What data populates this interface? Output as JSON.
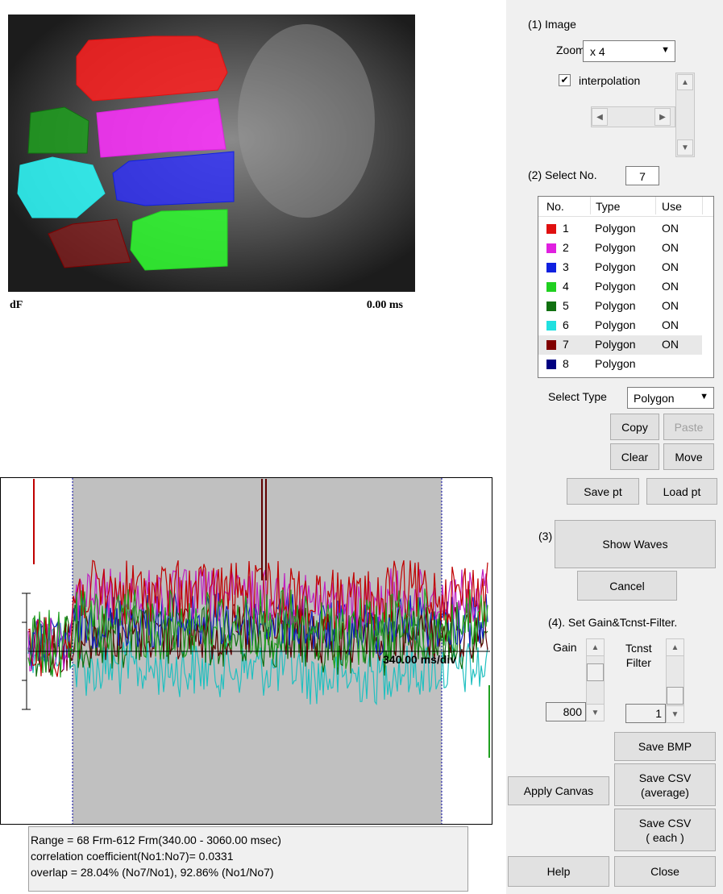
{
  "image": {
    "left_label": "dF",
    "time_label": "0.00 ms"
  },
  "waves": {
    "scale_label": "340.00 ms/div"
  },
  "info": {
    "lines": [
      "Range = 68 Frm-612 Frm(340.00 - 3060.00 msec)",
      "correlation coefficient(No1:No7)= 0.0331",
      "overlap = 28.04% (No7/No1), 92.86% (No1/No7)"
    ]
  },
  "panel": {
    "image_section": {
      "title": "(1) Image",
      "zoom_label": "Zoom",
      "zoom_value": "x 4",
      "interpolation": "interpolation"
    },
    "select_section": {
      "title": "(2) Select No.",
      "selected": "7",
      "columns": [
        "No.",
        "Type",
        "Use"
      ],
      "rows": [
        {
          "no": "1",
          "type": "Polygon",
          "use": "ON",
          "color": "#e01010"
        },
        {
          "no": "2",
          "type": "Polygon",
          "use": "ON",
          "color": "#e020e0"
        },
        {
          "no": "3",
          "type": "Polygon",
          "use": "ON",
          "color": "#1020e0"
        },
        {
          "no": "4",
          "type": "Polygon",
          "use": "ON",
          "color": "#20d020"
        },
        {
          "no": "5",
          "type": "Polygon",
          "use": "ON",
          "color": "#107010"
        },
        {
          "no": "6",
          "type": "Polygon",
          "use": "ON",
          "color": "#20e0e0"
        },
        {
          "no": "7",
          "type": "Polygon",
          "use": "ON",
          "color": "#800000"
        },
        {
          "no": "8",
          "type": "Polygon",
          "color": "#000080"
        }
      ],
      "select_type_label": "Select Type",
      "select_type_value": "Polygon",
      "buttons": {
        "copy": "Copy",
        "paste": "Paste",
        "clear": "Clear",
        "move": "Move",
        "save_pt": "Save pt",
        "load_pt": "Load pt"
      }
    },
    "waves_section": {
      "title": "(3)",
      "show": "Show Waves",
      "cancel": "Cancel"
    },
    "filter_section": {
      "title": "(4). Set Gain&Tcnst-Filter.",
      "gain_label": "Gain",
      "gain_value": "800",
      "tcnst_label": [
        "Tcnst",
        "Filter"
      ],
      "tcnst_value": "1"
    },
    "buttons": {
      "save_bmp": "Save BMP",
      "apply_canvas": "Apply Canvas",
      "save_csv_average": [
        "Save CSV",
        "(average)"
      ],
      "save_csv_each": [
        "Save CSV",
        "( each )"
      ],
      "help": "Help",
      "close": "Close"
    }
  }
}
